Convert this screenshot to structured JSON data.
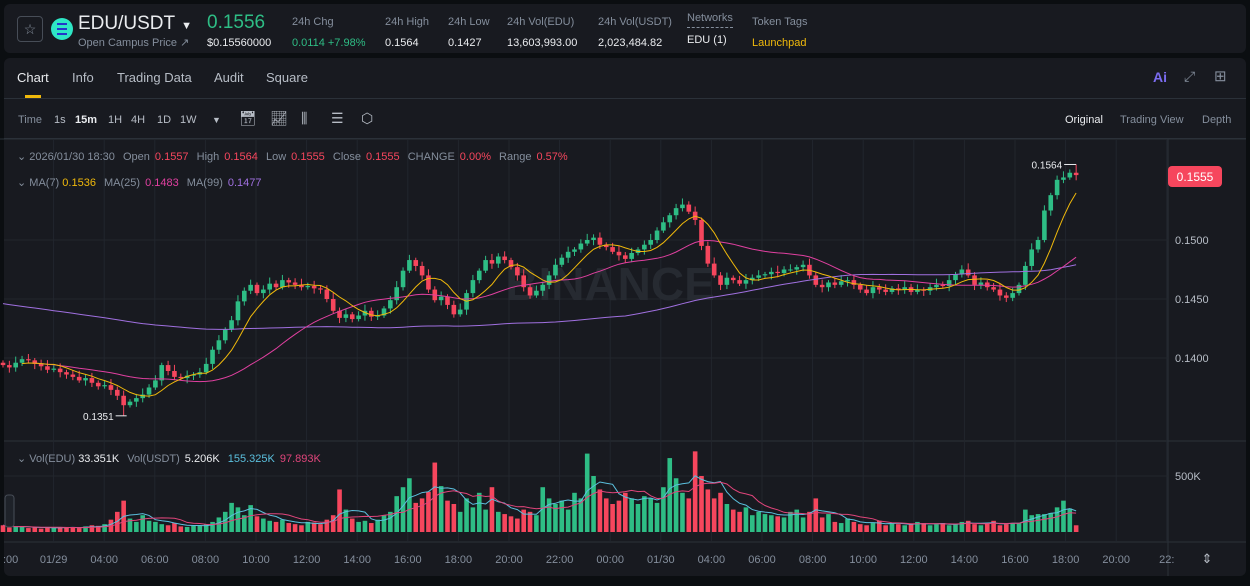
{
  "header": {
    "pair": "EDU/USDT",
    "subtitle": "Open Campus Price ↗",
    "last_price": "0.1556",
    "last_price_usd": "$0.15560000",
    "stats": [
      {
        "label": "24h Chg",
        "value": "0.0114 +7.98%",
        "color": "#2ebd85"
      },
      {
        "label": "24h High",
        "value": "0.1564"
      },
      {
        "label": "24h Low",
        "value": "0.1427"
      },
      {
        "label": "24h Vol(EDU)",
        "value": "13,603,993.00"
      },
      {
        "label": "24h Vol(USDT)",
        "value": "2,023,484.82"
      },
      {
        "label": "Networks",
        "value": "EDU (1)"
      },
      {
        "label": "Token Tags",
        "value": "Launchpad",
        "color": "#f0b90b"
      }
    ]
  },
  "tabs": [
    "Chart",
    "Info",
    "Trading Data",
    "Audit",
    "Square"
  ],
  "active_tab": "Chart",
  "toolbar": {
    "time_label": "Time",
    "intervals": [
      "1s",
      "15m",
      "1H",
      "4H",
      "1D",
      "1W"
    ],
    "active_interval": "15m",
    "views": [
      "Original",
      "Trading View",
      "Depth"
    ],
    "active_view": "Original",
    "ai_label": "Ai"
  },
  "legend": {
    "datetime": "2026/01/30 18:30",
    "open_label": "Open",
    "open": "0.1557",
    "high_label": "High",
    "high": "0.1564",
    "low_label": "Low",
    "low": "0.1555",
    "close_label": "Close",
    "close": "0.1555",
    "change_label": "CHANGE",
    "change": "0.00%",
    "range_label": "Range",
    "range": "0.57%",
    "ma7_label": "MA(7)",
    "ma7": "0.1536",
    "ma25_label": "MA(25)",
    "ma25": "0.1483",
    "ma99_label": "MA(99)",
    "ma99": "0.1477",
    "vol_label": "Vol(EDU)",
    "vol": "33.351K",
    "volusdt_label": "Vol(USDT)",
    "volusdt": "5.206K",
    "vol_ma1": "155.325K",
    "vol_ma2": "97.893K"
  },
  "colors": {
    "up": "#2ebd85",
    "down": "#f6465d",
    "ma7": "#f0b90b",
    "ma25": "#e040a0",
    "ma99": "#a070e0",
    "vol_ma1": "#5bc0de",
    "vol_ma2": "#e0457b",
    "accent": "#f0b90b"
  },
  "watermark": "BINANCE",
  "chart_data": {
    "type": "candlestick",
    "interval": "15m",
    "price_ticks": [
      "0.1500",
      "0.1450",
      "0.1400"
    ],
    "volume_ticks": [
      "500K"
    ],
    "time_ticks": [
      ":00",
      "01/29",
      "04:00",
      "06:00",
      "08:00",
      "10:00",
      "12:00",
      "14:00",
      "16:00",
      "18:00",
      "20:00",
      "22:00",
      "00:00",
      "01/30",
      "04:00",
      "06:00",
      "08:00",
      "10:00",
      "12:00",
      "14:00",
      "16:00",
      "18:00",
      "20:00",
      "22:"
    ],
    "current_price": "0.1555",
    "high_marker": "0.1564",
    "low_marker": "0.1351",
    "closes": [
      0.1394,
      0.1392,
      0.1396,
      0.1399,
      0.1398,
      0.1395,
      0.1393,
      0.139,
      0.1391,
      0.1388,
      0.1386,
      0.1384,
      0.1381,
      0.1383,
      0.1379,
      0.1376,
      0.1377,
      0.1373,
      0.1368,
      0.136,
      0.1363,
      0.1366,
      0.1369,
      0.1375,
      0.1381,
      0.1394,
      0.1389,
      0.1384,
      0.1383,
      0.1385,
      0.1386,
      0.1388,
      0.1395,
      0.1407,
      0.1415,
      0.1424,
      0.1432,
      0.1448,
      0.1457,
      0.1462,
      0.1455,
      0.1458,
      0.1463,
      0.146,
      0.1466,
      0.1464,
      0.1462,
      0.146,
      0.1461,
      0.1459,
      0.1458,
      0.145,
      0.144,
      0.1434,
      0.1437,
      0.1433,
      0.1436,
      0.144,
      0.1435,
      0.1436,
      0.1442,
      0.1449,
      0.146,
      0.1474,
      0.1483,
      0.1478,
      0.147,
      0.1458,
      0.1449,
      0.1452,
      0.1445,
      0.1437,
      0.1441,
      0.1455,
      0.1466,
      0.1474,
      0.1483,
      0.148,
      0.1486,
      0.1483,
      0.1477,
      0.147,
      0.146,
      0.1453,
      0.1457,
      0.1462,
      0.147,
      0.1479,
      0.1485,
      0.149,
      0.1492,
      0.1497,
      0.15,
      0.1502,
      0.1496,
      0.1494,
      0.149,
      0.1487,
      0.1484,
      0.1489,
      0.1492,
      0.1496,
      0.15,
      0.1508,
      0.1515,
      0.1521,
      0.1527,
      0.153,
      0.1524,
      0.1517,
      0.1495,
      0.148,
      0.147,
      0.1462,
      0.1468,
      0.1466,
      0.1463,
      0.1466,
      0.1468,
      0.147,
      0.1471,
      0.1473,
      0.1472,
      0.1475,
      0.1475,
      0.1477,
      0.1479,
      0.147,
      0.1462,
      0.146,
      0.1464,
      0.1462,
      0.1465,
      0.1466,
      0.1462,
      0.1458,
      0.1455,
      0.146,
      0.1458,
      0.1456,
      0.1459,
      0.1458,
      0.146,
      0.1456,
      0.1458,
      0.1457,
      0.146,
      0.1462,
      0.1461,
      0.1466,
      0.1471,
      0.1475,
      0.147,
      0.1462,
      0.1464,
      0.146,
      0.1458,
      0.1453,
      0.1451,
      0.1455,
      0.1462,
      0.1478,
      0.1492,
      0.15,
      0.1525,
      0.1538,
      0.1551,
      0.1553,
      0.1557,
      0.1555
    ],
    "volumes_k": [
      60,
      40,
      45,
      50,
      35,
      40,
      30,
      45,
      35,
      40,
      45,
      40,
      35,
      50,
      60,
      55,
      70,
      110,
      180,
      280,
      120,
      90,
      150,
      100,
      90,
      70,
      60,
      80,
      50,
      45,
      55,
      60,
      70,
      90,
      130,
      180,
      260,
      220,
      150,
      240,
      140,
      120,
      100,
      90,
      110,
      80,
      70,
      60,
      90,
      85,
      70,
      110,
      150,
      380,
      200,
      120,
      90,
      100,
      80,
      110,
      150,
      180,
      320,
      400,
      480,
      260,
      300,
      360,
      620,
      410,
      280,
      250,
      180,
      300,
      220,
      350,
      200,
      400,
      180,
      160,
      140,
      120,
      200,
      180,
      150,
      400,
      300,
      250,
      280,
      200,
      350,
      300,
      700,
      500,
      380,
      300,
      250,
      280,
      350,
      300,
      250,
      320,
      300,
      260,
      400,
      660,
      480,
      350,
      300,
      720,
      500,
      380,
      300,
      350,
      250,
      200,
      180,
      220,
      150,
      180,
      160,
      150,
      140,
      130,
      180,
      200,
      130,
      180,
      300,
      130,
      160,
      90,
      80,
      120,
      90,
      70,
      60,
      80,
      100,
      60,
      80,
      70,
      60,
      70,
      90,
      80,
      60,
      70,
      80,
      60,
      70,
      90,
      100,
      70,
      60,
      80,
      100,
      60,
      70,
      80,
      80,
      200,
      150,
      160,
      160,
      170,
      220,
      280,
      210,
      60
    ]
  }
}
